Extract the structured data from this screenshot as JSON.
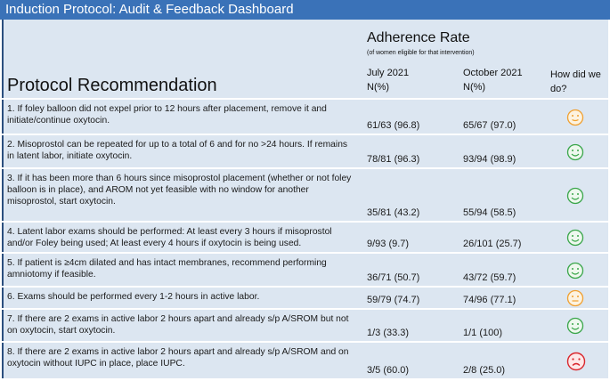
{
  "header": {
    "title": "Induction Protocol: Audit & Feedback Dashboard"
  },
  "table": {
    "group_header": "Adherence Rate",
    "group_note": "(of women eligible for that intervention)",
    "columns": [
      "Protocol Recommendation",
      "July 2021",
      "October 2021",
      "How did we do?"
    ],
    "unit": "N(%)",
    "rows": [
      [
        "1. If foley balloon did not expel prior to 12 hours after placement, remove it and initiate/continue oxytocin.",
        "61/63 (96.8)",
        "65/67 (97.0)"
      ],
      [
        "2. Misoprostol can be repeated for up to a total of 6 and for no >24 hours. If remains in latent labor, initiate oxytocin.",
        "78/81 (96.3)",
        "93/94 (98.9)"
      ],
      [
        "3. If it has been more than 6 hours since misoprostol placement (whether or not foley balloon is in place), and AROM not yet feasible with no window for another misoprostol, start oxytocin.",
        "35/81 (43.2)",
        "55/94 (58.5)"
      ],
      [
        "4. Latent labor exams should be performed: At least every 3 hours if misoprostol and/or Foley being used; At least every 4 hours if oxytocin is being used.",
        "9/93 (9.7)",
        "26/101 (25.7)"
      ],
      [
        "5. If patient is ≥4cm dilated and has intact membranes, recommend performing amniotomy if feasible.",
        "36/71 (50.7)",
        "43/72 (59.7)"
      ],
      [
        "6. Exams should be performed every 1-2 hours in active labor.",
        "59/79 (74.7)",
        "74/96 (77.1)"
      ],
      [
        "7. If there are 2 exams in active labor 2 hours apart and already s/p A/SROM but not on oxytocin, start oxytocin.",
        "1/3 (33.3)",
        "1/1 (100)"
      ],
      [
        "8. If there are 2 exams in active labor 2 hours apart and already s/p A/SROM and on oxytocin without IUPC in place, place IUPC.",
        "3/5 (60.0)",
        "2/8 (25.0)"
      ]
    ]
  }
}
